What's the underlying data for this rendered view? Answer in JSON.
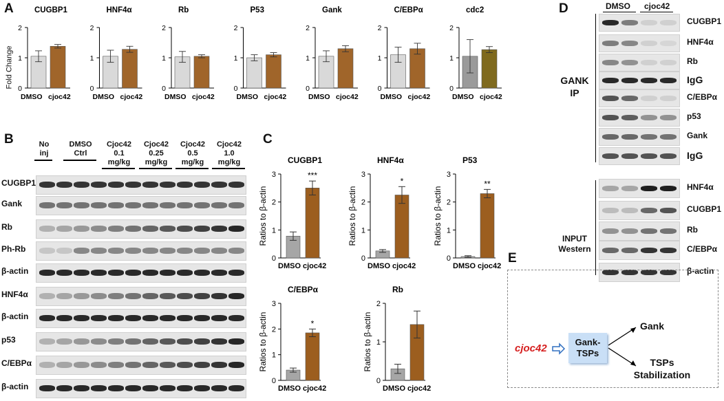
{
  "panels": {
    "A": "A",
    "B": "B",
    "C": "C",
    "D": "D",
    "E": "E"
  },
  "panelA": {
    "ylabel": "Fold Change",
    "categories": [
      "DMSO",
      "cjoc42"
    ],
    "charts": [
      {
        "title": "CUGBP1",
        "values": [
          1.05,
          1.38
        ],
        "errors": [
          0.18,
          0.06
        ]
      },
      {
        "title": "HNF4α",
        "values": [
          1.05,
          1.28
        ],
        "errors": [
          0.2,
          0.1
        ]
      },
      {
        "title": "Rb",
        "values": [
          1.03,
          1.05
        ],
        "errors": [
          0.18,
          0.05
        ]
      },
      {
        "title": "P53",
        "values": [
          1.0,
          1.1
        ],
        "errors": [
          0.1,
          0.07
        ]
      },
      {
        "title": "Gank",
        "values": [
          1.05,
          1.3
        ],
        "errors": [
          0.18,
          0.1
        ]
      },
      {
        "title": "C/EBPα",
        "values": [
          1.1,
          1.3
        ],
        "errors": [
          0.25,
          0.18
        ]
      },
      {
        "title": "cdc2",
        "values": [
          1.05,
          1.27
        ],
        "errors": [
          0.55,
          0.1
        ]
      }
    ]
  },
  "panelB": {
    "headers": [
      "No\ninj",
      "DMSO\nCtrl",
      "Cjoc42\n0.1\nmg/kg",
      "Cjoc42\n0.25\nmg/kg",
      "Cjoc42\n0.5\nmg/kg",
      "Cjoc42\n1.0\nmg/kg"
    ],
    "rows": [
      "CUGBP1",
      "Gank",
      "Rb",
      "Ph-Rb",
      "β-actin",
      "HNF4α",
      "β-actin",
      "p53",
      "C/EBPα",
      "β-actin"
    ]
  },
  "panelC": {
    "ylabel": "Ratios to β-actin",
    "categories": [
      "DMSO",
      "cjoc42"
    ],
    "charts": [
      {
        "title": "CUGBP1",
        "values": [
          0.78,
          2.5
        ],
        "errors": [
          0.15,
          0.25
        ],
        "sig": "***",
        "ymax": 3
      },
      {
        "title": "HNF4α",
        "values": [
          0.25,
          2.25
        ],
        "errors": [
          0.05,
          0.3
        ],
        "sig": "*",
        "ymax": 3
      },
      {
        "title": "P53",
        "values": [
          0.05,
          2.3
        ],
        "errors": [
          0.03,
          0.15
        ],
        "sig": "**",
        "ymax": 3
      },
      {
        "title": "C/EBPα",
        "values": [
          0.4,
          1.85
        ],
        "errors": [
          0.08,
          0.15
        ],
        "sig": "*",
        "ymax": 3
      },
      {
        "title": "Rb",
        "values": [
          0.3,
          1.45
        ],
        "errors": [
          0.12,
          0.35
        ],
        "sig": "",
        "ymax": 2
      }
    ]
  },
  "panelD": {
    "groups": [
      "DMSO",
      "cjoc42"
    ],
    "ip_label": "GANK\nIP",
    "input_label": "INPUT\nWestern",
    "ip_rows": [
      "CUGBP1",
      "HNF4α",
      "Rb",
      "IgG",
      "C/EBPα",
      "p53",
      "Gank",
      "IgG"
    ],
    "input_rows": [
      "HNF4α",
      "CUGBP1",
      "Rb",
      "C/EBPα",
      "β-actin"
    ]
  },
  "panelE": {
    "drug": "cjoc42",
    "complex": "Gank-\nTSPs",
    "out1": "Gank",
    "out2": "TSPs\nStabilization"
  },
  "chart_data": [
    {
      "type": "bar",
      "title": "CUGBP1",
      "categories": [
        "DMSO",
        "cjoc42"
      ],
      "values": [
        1.05,
        1.38
      ],
      "ylabel": "Fold Change",
      "ylim": [
        0,
        2
      ]
    },
    {
      "type": "bar",
      "title": "HNF4α",
      "categories": [
        "DMSO",
        "cjoc42"
      ],
      "values": [
        1.05,
        1.28
      ],
      "ylim": [
        0,
        2
      ]
    },
    {
      "type": "bar",
      "title": "Rb",
      "categories": [
        "DMSO",
        "cjoc42"
      ],
      "values": [
        1.03,
        1.05
      ],
      "ylim": [
        0,
        2
      ]
    },
    {
      "type": "bar",
      "title": "P53",
      "categories": [
        "DMSO",
        "cjoc42"
      ],
      "values": [
        1.0,
        1.1
      ],
      "ylim": [
        0,
        2
      ]
    },
    {
      "type": "bar",
      "title": "Gank",
      "categories": [
        "DMSO",
        "cjoc42"
      ],
      "values": [
        1.05,
        1.3
      ],
      "ylim": [
        0,
        2
      ]
    },
    {
      "type": "bar",
      "title": "C/EBPα",
      "categories": [
        "DMSO",
        "cjoc42"
      ],
      "values": [
        1.1,
        1.3
      ],
      "ylim": [
        0,
        2
      ]
    },
    {
      "type": "bar",
      "title": "cdc2",
      "categories": [
        "DMSO",
        "cjoc42"
      ],
      "values": [
        1.05,
        1.27
      ],
      "ylim": [
        0,
        2
      ]
    },
    {
      "type": "bar",
      "title": "CUGBP1",
      "categories": [
        "DMSO",
        "cjoc42"
      ],
      "values": [
        0.78,
        2.5
      ],
      "ylabel": "Ratios to β-actin",
      "ylim": [
        0,
        3
      ]
    },
    {
      "type": "bar",
      "title": "HNF4α",
      "categories": [
        "DMSO",
        "cjoc42"
      ],
      "values": [
        0.25,
        2.25
      ],
      "ylabel": "Ratios to β-actin",
      "ylim": [
        0,
        3
      ]
    },
    {
      "type": "bar",
      "title": "P53",
      "categories": [
        "DMSO",
        "cjoc42"
      ],
      "values": [
        0.05,
        2.3
      ],
      "ylabel": "Ratios to β-actin",
      "ylim": [
        0,
        3
      ]
    },
    {
      "type": "bar",
      "title": "C/EBPα",
      "categories": [
        "DMSO",
        "cjoc42"
      ],
      "values": [
        0.4,
        1.85
      ],
      "ylabel": "Ratios to β-actin",
      "ylim": [
        0,
        3
      ]
    },
    {
      "type": "bar",
      "title": "Rb",
      "categories": [
        "DMSO",
        "cjoc42"
      ],
      "values": [
        0.3,
        1.45
      ],
      "ylabel": "Ratios to β-actin",
      "ylim": [
        0,
        2
      ]
    }
  ],
  "colors": {
    "dmso_a": "#d9d9d9",
    "cjoc_a": "#a0652a",
    "dmso_c": "#a6a6a6",
    "cjoc_c": "#9c5e1f",
    "cdc2_dmso": "#9a9a9a",
    "cdc2_cjoc": "#7f6a1e",
    "drug": "#d62020",
    "complex_fill": "#c9dff6",
    "arrow": "#2f6fc0"
  }
}
